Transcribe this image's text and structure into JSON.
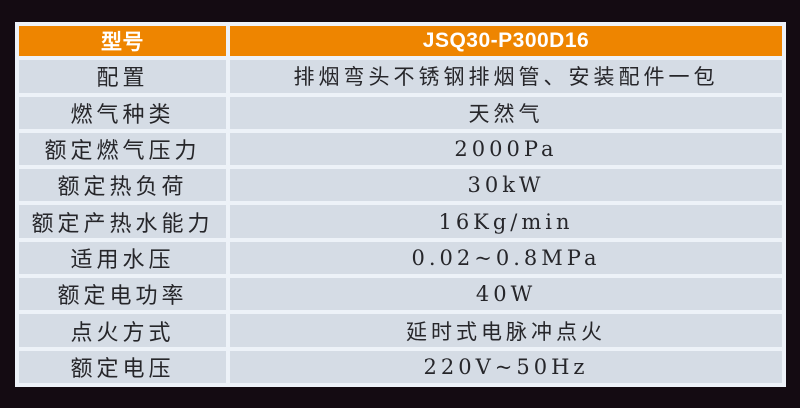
{
  "colors": {
    "background": "#140b12",
    "panel": "#edf2f8",
    "header_bg": "#ee8500",
    "header_text": "#ffffff",
    "row_bg": "#d5dce5",
    "row_text": "#26262a"
  },
  "table": {
    "header": {
      "label": "型号",
      "value": "JSQ30-P300D16"
    },
    "rows": [
      {
        "label": "配置",
        "value": "排烟弯头不锈钢排烟管、安装配件一包"
      },
      {
        "label": "燃气种类",
        "value": "天然气"
      },
      {
        "label": "额定燃气压力",
        "value": "2000Pa"
      },
      {
        "label": "额定热负荷",
        "value": "30kW"
      },
      {
        "label": "额定产热水能力",
        "value": "16Kg/min"
      },
      {
        "label": "适用水压",
        "value": "0.02~0.8MPa"
      },
      {
        "label": "额定电功率",
        "value": "40W"
      },
      {
        "label": "点火方式",
        "value": "延时式电脉冲点火"
      },
      {
        "label": "额定电压",
        "value": "220V~50Hz"
      }
    ]
  }
}
